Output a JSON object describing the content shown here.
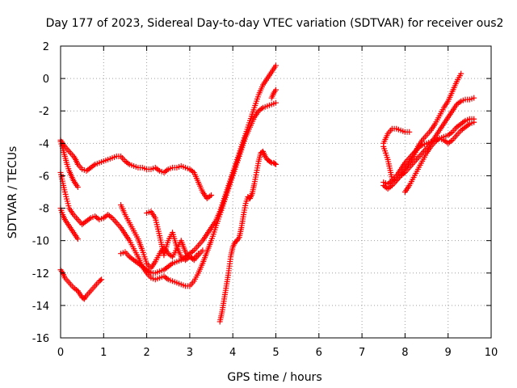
{
  "chart_data": {
    "type": "scatter",
    "title": "Day 177 of 2023, Sidereal Day-to-day VTEC variation (SDTVAR) for receiver ous2",
    "xlabel": "GPS time / hours",
    "ylabel": "SDTVAR / TECUs",
    "xlim": [
      0,
      10
    ],
    "ylim": [
      -16,
      2
    ],
    "xticks": [
      0,
      1,
      2,
      3,
      4,
      5,
      6,
      7,
      8,
      9,
      10
    ],
    "yticks": [
      -16,
      -14,
      -12,
      -10,
      -8,
      -6,
      -4,
      -2,
      0,
      2
    ],
    "grid": true,
    "marker": "+",
    "color": "#ff0000",
    "series": [
      {
        "name": "track-1",
        "x": [
          0.0,
          0.1,
          0.2,
          0.3,
          0.35,
          0.4,
          0.5,
          0.6,
          0.7,
          0.8,
          0.9,
          1.0,
          1.1,
          1.2,
          1.3,
          1.4,
          1.5,
          1.6,
          1.7,
          1.8,
          1.9,
          2.0,
          2.1,
          2.2,
          2.3,
          2.4,
          2.5,
          2.6,
          2.7,
          2.8,
          2.9,
          3.0,
          3.1,
          3.2,
          3.3,
          3.4,
          3.5
        ],
        "y": [
          -3.8,
          -4.2,
          -4.5,
          -4.8,
          -5.0,
          -5.3,
          -5.6,
          -5.7,
          -5.5,
          -5.3,
          -5.2,
          -5.1,
          -5.0,
          -4.9,
          -4.8,
          -4.8,
          -5.1,
          -5.3,
          -5.4,
          -5.5,
          -5.5,
          -5.6,
          -5.6,
          -5.5,
          -5.7,
          -5.8,
          -5.6,
          -5.5,
          -5.5,
          -5.4,
          -5.5,
          -5.6,
          -5.8,
          -6.4,
          -7.0,
          -7.4,
          -7.2
        ]
      },
      {
        "name": "track-2",
        "x": [
          0.0,
          0.05,
          0.1,
          0.15,
          0.2,
          0.25,
          0.3,
          0.35,
          0.4
        ],
        "y": [
          -3.9,
          -4.3,
          -4.8,
          -5.3,
          -5.7,
          -6.0,
          -6.3,
          -6.5,
          -6.7
        ]
      },
      {
        "name": "track-3",
        "x": [
          0.0,
          0.1,
          0.2,
          0.3,
          0.4,
          0.5,
          0.6,
          0.7,
          0.8,
          0.9,
          1.0,
          1.1,
          1.2,
          1.3,
          1.4,
          1.5,
          1.6,
          1.7,
          1.8,
          1.9,
          2.0,
          2.1,
          2.2,
          2.3,
          2.4,
          2.5,
          2.6,
          2.7,
          2.8,
          2.9,
          3.0,
          3.1,
          3.2,
          3.3,
          3.4,
          3.5,
          3.6,
          3.7,
          3.8,
          3.9,
          4.0,
          4.1,
          4.2,
          4.3,
          4.4,
          4.5,
          4.6,
          4.7,
          4.8,
          4.9,
          5.0
        ],
        "y": [
          -5.8,
          -7.0,
          -8.0,
          -8.4,
          -8.7,
          -9.0,
          -8.8,
          -8.6,
          -8.5,
          -8.7,
          -8.6,
          -8.4,
          -8.6,
          -8.9,
          -9.2,
          -9.6,
          -10.0,
          -10.5,
          -11.0,
          -11.6,
          -12.0,
          -12.3,
          -12.4,
          -12.3,
          -12.2,
          -12.4,
          -12.5,
          -12.6,
          -12.7,
          -12.8,
          -12.8,
          -12.5,
          -12.0,
          -11.4,
          -10.7,
          -10.0,
          -9.2,
          -8.4,
          -7.6,
          -6.8,
          -6.0,
          -5.2,
          -4.4,
          -3.6,
          -3.0,
          -2.4,
          -2.0,
          -1.8,
          -1.7,
          -1.6,
          -1.5
        ]
      },
      {
        "name": "track-4",
        "x": [
          0.0,
          0.05,
          0.1,
          0.15,
          0.2,
          0.25,
          0.3,
          0.35,
          0.4
        ],
        "y": [
          -8.0,
          -8.4,
          -8.7,
          -8.9,
          -9.1,
          -9.3,
          -9.5,
          -9.7,
          -9.9
        ]
      },
      {
        "name": "track-5",
        "x": [
          0.0,
          0.05,
          0.1,
          0.2,
          0.3,
          0.4,
          0.5,
          0.55,
          0.6,
          0.7,
          0.8,
          0.9,
          0.95
        ],
        "y": [
          -11.8,
          -12.0,
          -12.3,
          -12.6,
          -12.9,
          -13.1,
          -13.5,
          -13.6,
          -13.4,
          -13.1,
          -12.8,
          -12.5,
          -12.4
        ]
      },
      {
        "name": "track-6",
        "x": [
          1.4,
          1.5,
          1.6,
          1.7,
          1.8,
          1.9,
          2.0,
          2.1,
          2.2,
          2.3,
          2.4,
          2.5,
          2.6,
          2.7,
          2.8,
          2.9,
          3.0,
          3.1,
          3.2,
          3.3,
          3.4,
          3.5,
          3.6,
          3.7,
          3.8,
          3.9,
          4.0,
          4.1,
          4.2,
          4.3,
          4.4,
          4.5,
          4.6,
          4.7,
          4.8,
          4.9,
          5.0
        ],
        "y": [
          -10.8,
          -10.7,
          -11.0,
          -11.2,
          -11.4,
          -11.6,
          -11.8,
          -12.0,
          -12.0,
          -11.9,
          -11.8,
          -11.6,
          -11.4,
          -11.3,
          -11.2,
          -11.0,
          -10.8,
          -10.6,
          -10.3,
          -10.0,
          -9.6,
          -9.2,
          -8.8,
          -8.2,
          -7.4,
          -6.6,
          -5.8,
          -5.0,
          -4.2,
          -3.4,
          -2.6,
          -1.8,
          -1.0,
          -0.4,
          0.0,
          0.4,
          0.8
        ]
      },
      {
        "name": "track-7",
        "x": [
          1.4,
          1.5,
          1.6,
          1.7,
          1.8,
          1.9,
          2.0,
          2.1,
          2.2,
          2.3,
          2.4,
          2.5,
          2.6,
          2.7,
          2.8,
          2.9,
          3.0,
          3.1,
          3.2,
          3.3
        ],
        "y": [
          -7.8,
          -8.4,
          -8.9,
          -9.4,
          -9.9,
          -10.6,
          -11.4,
          -11.7,
          -11.3,
          -10.8,
          -10.4,
          -10.8,
          -11.0,
          -10.5,
          -10.0,
          -10.7,
          -11.0,
          -11.2,
          -10.9,
          -10.6
        ]
      },
      {
        "name": "track-8",
        "x": [
          2.0,
          2.1,
          2.2,
          2.3,
          2.4,
          2.5,
          2.6,
          2.7,
          2.8,
          2.9,
          3.0,
          3.1,
          3.2
        ],
        "y": [
          -8.3,
          -8.2,
          -8.6,
          -9.7,
          -10.9,
          -10.0,
          -9.5,
          -10.4,
          -11.0,
          -11.2,
          -11.0,
          -11.1,
          -10.8
        ]
      },
      {
        "name": "track-9",
        "x": [
          3.7,
          3.75,
          3.8,
          3.85,
          3.9,
          3.95,
          4.0,
          4.05,
          4.1,
          4.15,
          4.2,
          4.25,
          4.3,
          4.35,
          4.4,
          4.45,
          4.5,
          4.55,
          4.6,
          4.65,
          4.7,
          4.75,
          4.8,
          4.85,
          4.9,
          4.95,
          5.0
        ],
        "y": [
          -15.0,
          -14.4,
          -13.6,
          -12.8,
          -12.0,
          -11.0,
          -10.4,
          -10.1,
          -10.0,
          -9.8,
          -9.2,
          -8.4,
          -7.7,
          -7.3,
          -7.4,
          -7.1,
          -6.5,
          -5.8,
          -5.1,
          -4.6,
          -4.5,
          -4.8,
          -5.0,
          -5.1,
          -5.2,
          -5.2,
          -5.3
        ]
      },
      {
        "name": "track-10",
        "x": [
          4.9,
          4.95,
          5.0
        ],
        "y": [
          -1.2,
          -0.9,
          -0.7
        ]
      },
      {
        "name": "track-11",
        "x": [
          7.5,
          7.6,
          7.7,
          7.8,
          7.9,
          8.0,
          8.1
        ],
        "y": [
          -4.0,
          -3.4,
          -3.1,
          -3.1,
          -3.2,
          -3.3,
          -3.3
        ]
      },
      {
        "name": "track-12",
        "x": [
          7.5,
          7.6,
          7.7,
          7.8,
          7.9,
          8.0,
          8.1,
          8.2,
          8.3,
          8.4,
          8.5,
          8.6,
          8.7,
          8.8,
          8.9,
          9.0,
          9.1,
          9.2,
          9.3
        ],
        "y": [
          -4.2,
          -5.0,
          -6.2,
          -6.3,
          -6.0,
          -5.6,
          -5.2,
          -4.8,
          -4.2,
          -3.8,
          -3.5,
          -3.2,
          -2.8,
          -2.3,
          -1.8,
          -1.4,
          -0.8,
          -0.2,
          0.3
        ]
      },
      {
        "name": "track-13",
        "x": [
          7.5,
          7.6,
          7.7,
          7.8,
          7.9,
          8.0,
          8.1,
          8.2,
          8.3,
          8.4,
          8.5,
          8.6,
          8.7,
          8.8,
          8.9,
          9.0,
          9.1,
          9.2,
          9.3,
          9.4,
          9.5,
          9.6
        ],
        "y": [
          -6.6,
          -6.8,
          -6.6,
          -6.3,
          -6.0,
          -5.8,
          -5.5,
          -5.2,
          -4.9,
          -4.6,
          -4.3,
          -4.0,
          -3.6,
          -3.2,
          -2.8,
          -2.4,
          -2.0,
          -1.6,
          -1.4,
          -1.3,
          -1.3,
          -1.2
        ]
      },
      {
        "name": "track-14",
        "x": [
          7.5,
          7.6,
          7.7,
          7.8,
          7.9,
          8.0,
          8.1,
          8.2,
          8.3,
          8.4,
          8.5,
          8.6,
          8.7,
          8.8,
          8.9,
          9.0,
          9.1,
          9.2,
          9.3,
          9.4,
          9.5,
          9.6
        ],
        "y": [
          -6.4,
          -6.5,
          -6.3,
          -6.0,
          -5.6,
          -5.2,
          -4.9,
          -4.6,
          -4.3,
          -4.1,
          -4.0,
          -3.9,
          -3.8,
          -3.7,
          -3.6,
          -3.5,
          -3.3,
          -3.0,
          -2.8,
          -2.6,
          -2.5,
          -2.5
        ]
      },
      {
        "name": "track-15",
        "x": [
          8.0,
          8.1,
          8.2,
          8.3,
          8.4,
          8.5,
          8.6,
          8.7,
          8.8,
          8.9,
          9.0,
          9.1,
          9.2,
          9.3,
          9.4,
          9.5,
          9.6
        ],
        "y": [
          -7.0,
          -6.6,
          -6.1,
          -5.6,
          -5.1,
          -4.6,
          -4.2,
          -3.9,
          -3.7,
          -3.8,
          -4.0,
          -3.8,
          -3.5,
          -3.2,
          -3.0,
          -2.8,
          -2.7
        ]
      }
    ]
  }
}
